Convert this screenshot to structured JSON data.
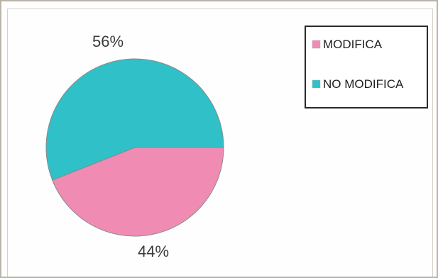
{
  "chart_data": {
    "type": "pie",
    "categories": [
      "MODIFICA",
      "NO MODIFICA"
    ],
    "values": [
      44,
      56
    ],
    "labels": [
      "44%",
      "56%"
    ],
    "colors": [
      "#f08cb4",
      "#30c0c8"
    ],
    "title": "",
    "legend_position": "top-right",
    "grid": false
  }
}
